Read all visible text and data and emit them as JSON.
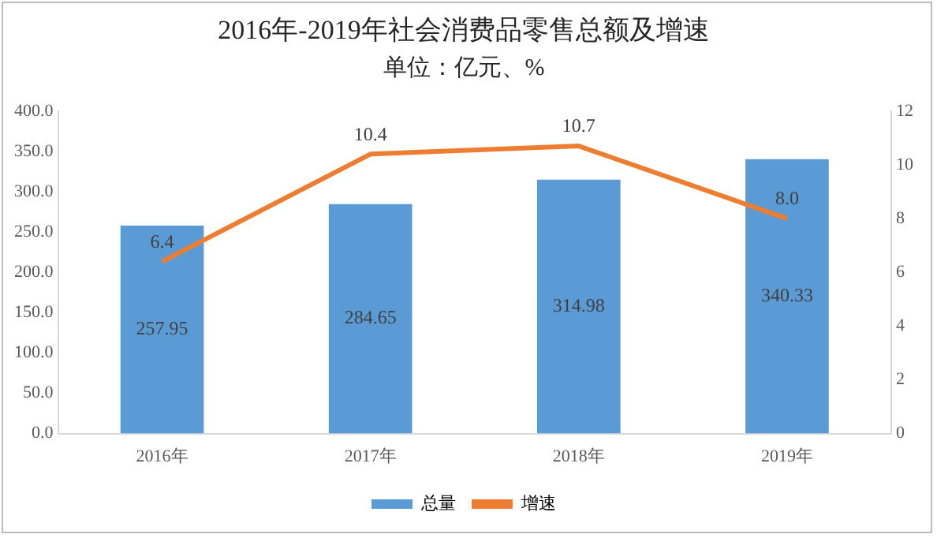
{
  "chart_data": {
    "type": "bar",
    "title": "2016年-2019年社会消费品零售总额及增速",
    "subtitle": "单位：亿元、%",
    "categories": [
      "2016年",
      "2017年",
      "2018年",
      "2019年"
    ],
    "series": [
      {
        "name": "总量",
        "color": "#5b9bd5",
        "values": [
          257.95,
          284.65,
          314.98,
          340.33
        ],
        "value_labels": [
          "257.95",
          "284.65",
          "314.98",
          "340.33"
        ]
      },
      {
        "name": "增速",
        "type": "line",
        "axis": "y2",
        "color": "#ed7d31",
        "values": [
          6.4,
          10.4,
          10.7,
          8.0
        ],
        "value_labels": [
          "6.4",
          "10.4",
          "10.7",
          "8.0"
        ]
      }
    ],
    "ylim": [
      0,
      400
    ],
    "yticks": [
      {
        "value": 0,
        "label": "0.0"
      },
      {
        "value": 50,
        "label": "50.0"
      },
      {
        "value": 100,
        "label": "100.0"
      },
      {
        "value": 150,
        "label": "150.0"
      },
      {
        "value": 200,
        "label": "200.0"
      },
      {
        "value": 250,
        "label": "250.0"
      },
      {
        "value": 300,
        "label": "300.0"
      },
      {
        "value": 350,
        "label": "350.0"
      },
      {
        "value": 400,
        "label": "400.0"
      }
    ],
    "y2lim": [
      0,
      12
    ],
    "y2ticks": [
      0,
      2,
      4,
      6,
      8,
      10,
      12
    ],
    "grid": false,
    "legend": "bottom",
    "marker": "none",
    "line_style": "solid"
  }
}
